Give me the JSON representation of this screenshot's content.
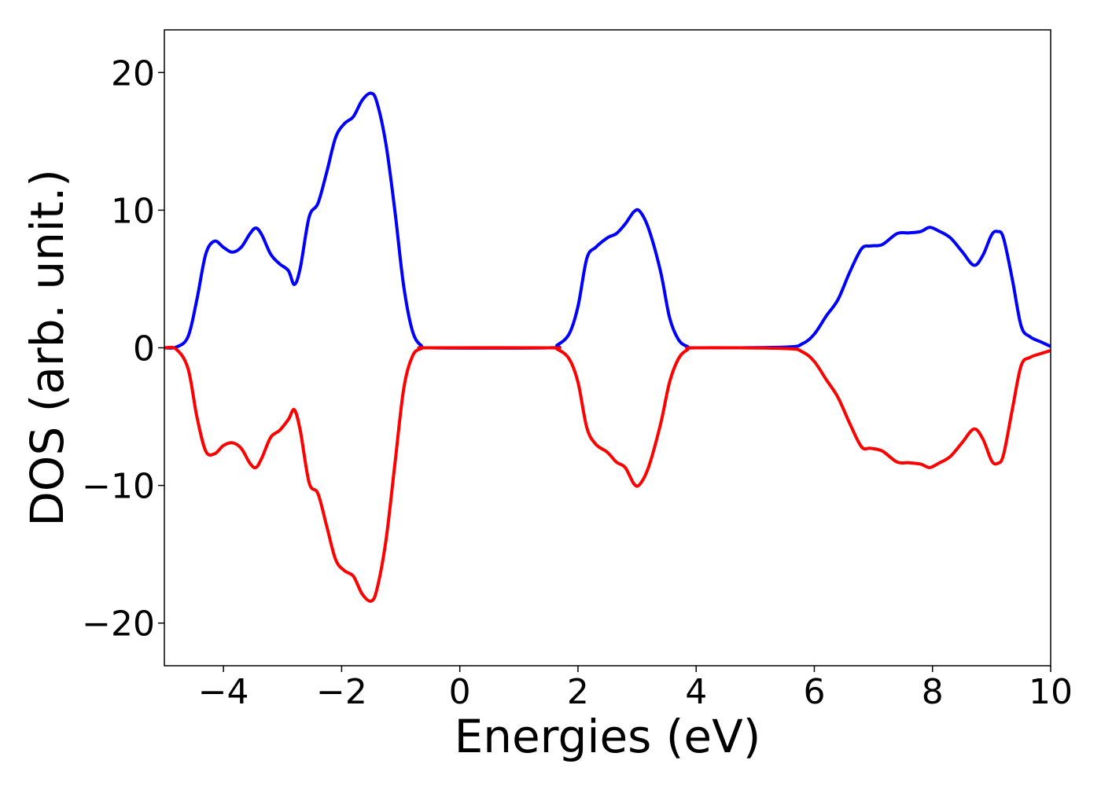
{
  "chart_data": {
    "type": "line",
    "title": "",
    "xlabel": "Energies (eV)",
    "ylabel": "DOS (arb. unit.)",
    "xlim": [
      -5,
      10
    ],
    "ylim": [
      -23.1,
      23.1
    ],
    "xticks": [
      -4,
      -2,
      0,
      2,
      4,
      6,
      8,
      10
    ],
    "xtick_labels": [
      "−4",
      "−2",
      "0",
      "2",
      "4",
      "6",
      "8",
      "10"
    ],
    "yticks": [
      20,
      10,
      0,
      -10,
      -20
    ],
    "ytick_labels": [
      "20",
      "10",
      "0",
      "−10",
      "−20"
    ],
    "grid": false,
    "legend": "none",
    "series": [
      {
        "color": "#0000ff",
        "points": [
          [
            -5.0,
            0.0
          ],
          [
            -4.8,
            0.05
          ],
          [
            -4.6,
            0.8
          ],
          [
            -4.45,
            3.5
          ],
          [
            -4.3,
            6.8
          ],
          [
            -4.15,
            7.75
          ],
          [
            -4.0,
            7.3
          ],
          [
            -3.85,
            6.95
          ],
          [
            -3.7,
            7.3
          ],
          [
            -3.55,
            8.3
          ],
          [
            -3.45,
            8.7
          ],
          [
            -3.35,
            8.2
          ],
          [
            -3.2,
            6.8
          ],
          [
            -3.05,
            6.1
          ],
          [
            -2.9,
            5.6
          ],
          [
            -2.8,
            4.6
          ],
          [
            -2.7,
            5.8
          ],
          [
            -2.55,
            9.5
          ],
          [
            -2.4,
            10.5
          ],
          [
            -2.25,
            12.8
          ],
          [
            -2.1,
            15.3
          ],
          [
            -1.95,
            16.3
          ],
          [
            -1.8,
            16.8
          ],
          [
            -1.65,
            18.0
          ],
          [
            -1.5,
            18.5
          ],
          [
            -1.4,
            17.8
          ],
          [
            -1.25,
            14.8
          ],
          [
            -1.1,
            10.0
          ],
          [
            -0.95,
            4.5
          ],
          [
            -0.8,
            1.2
          ],
          [
            -0.65,
            0.15
          ],
          [
            -0.5,
            0.0
          ],
          [
            1.5,
            0.0
          ],
          [
            1.65,
            0.2
          ],
          [
            1.85,
            1.0
          ],
          [
            2.0,
            3.0
          ],
          [
            2.15,
            6.5
          ],
          [
            2.3,
            7.3
          ],
          [
            2.5,
            8.0
          ],
          [
            2.65,
            8.3
          ],
          [
            2.8,
            9.0
          ],
          [
            2.95,
            9.9
          ],
          [
            3.05,
            9.9
          ],
          [
            3.2,
            8.6
          ],
          [
            3.4,
            5.5
          ],
          [
            3.55,
            2.2
          ],
          [
            3.7,
            0.6
          ],
          [
            3.85,
            0.1
          ],
          [
            4.0,
            0.0
          ],
          [
            5.5,
            0.05
          ],
          [
            5.8,
            0.3
          ],
          [
            6.0,
            1.0
          ],
          [
            6.2,
            2.3
          ],
          [
            6.4,
            3.5
          ],
          [
            6.6,
            5.5
          ],
          [
            6.8,
            7.2
          ],
          [
            6.95,
            7.4
          ],
          [
            7.15,
            7.5
          ],
          [
            7.4,
            8.3
          ],
          [
            7.6,
            8.35
          ],
          [
            7.8,
            8.45
          ],
          [
            7.95,
            8.75
          ],
          [
            8.1,
            8.5
          ],
          [
            8.3,
            8.0
          ],
          [
            8.5,
            7.0
          ],
          [
            8.7,
            6.0
          ],
          [
            8.85,
            6.7
          ],
          [
            9.0,
            8.2
          ],
          [
            9.1,
            8.45
          ],
          [
            9.2,
            8.0
          ],
          [
            9.35,
            5.0
          ],
          [
            9.5,
            1.6
          ],
          [
            9.65,
            0.8
          ],
          [
            9.85,
            0.4
          ],
          [
            10.0,
            0.1
          ]
        ]
      },
      {
        "color": "#ff0000",
        "points": [
          [
            -5.0,
            0.0
          ],
          [
            -4.8,
            -0.1
          ],
          [
            -4.6,
            -1.5
          ],
          [
            -4.45,
            -5.0
          ],
          [
            -4.3,
            -7.5
          ],
          [
            -4.15,
            -7.7
          ],
          [
            -4.0,
            -7.1
          ],
          [
            -3.85,
            -6.9
          ],
          [
            -3.7,
            -7.3
          ],
          [
            -3.55,
            -8.4
          ],
          [
            -3.45,
            -8.7
          ],
          [
            -3.35,
            -8.0
          ],
          [
            -3.2,
            -6.5
          ],
          [
            -3.05,
            -6.0
          ],
          [
            -2.9,
            -5.2
          ],
          [
            -2.8,
            -4.5
          ],
          [
            -2.7,
            -6.0
          ],
          [
            -2.55,
            -9.8
          ],
          [
            -2.4,
            -10.6
          ],
          [
            -2.25,
            -13.0
          ],
          [
            -2.1,
            -15.4
          ],
          [
            -1.95,
            -16.2
          ],
          [
            -1.8,
            -16.6
          ],
          [
            -1.65,
            -17.9
          ],
          [
            -1.5,
            -18.4
          ],
          [
            -1.4,
            -17.5
          ],
          [
            -1.25,
            -14.0
          ],
          [
            -1.1,
            -8.5
          ],
          [
            -0.95,
            -3.0
          ],
          [
            -0.8,
            -0.6
          ],
          [
            -0.65,
            -0.05
          ],
          [
            -0.5,
            0.0
          ],
          [
            1.5,
            0.0
          ],
          [
            1.65,
            -0.1
          ],
          [
            1.85,
            -0.8
          ],
          [
            2.0,
            -2.5
          ],
          [
            2.15,
            -5.8
          ],
          [
            2.3,
            -7.0
          ],
          [
            2.5,
            -7.6
          ],
          [
            2.65,
            -8.3
          ],
          [
            2.8,
            -8.7
          ],
          [
            2.95,
            -9.9
          ],
          [
            3.05,
            -9.9
          ],
          [
            3.2,
            -8.6
          ],
          [
            3.4,
            -5.5
          ],
          [
            3.55,
            -2.5
          ],
          [
            3.7,
            -0.8
          ],
          [
            3.85,
            -0.15
          ],
          [
            4.0,
            0.0
          ],
          [
            5.5,
            -0.05
          ],
          [
            5.8,
            -0.3
          ],
          [
            6.0,
            -1.0
          ],
          [
            6.2,
            -2.3
          ],
          [
            6.4,
            -3.6
          ],
          [
            6.6,
            -5.5
          ],
          [
            6.8,
            -7.2
          ],
          [
            6.95,
            -7.3
          ],
          [
            7.15,
            -7.5
          ],
          [
            7.4,
            -8.3
          ],
          [
            7.6,
            -8.35
          ],
          [
            7.8,
            -8.45
          ],
          [
            7.95,
            -8.7
          ],
          [
            8.1,
            -8.4
          ],
          [
            8.3,
            -7.9
          ],
          [
            8.5,
            -6.9
          ],
          [
            8.7,
            -5.9
          ],
          [
            8.85,
            -6.6
          ],
          [
            9.0,
            -8.2
          ],
          [
            9.1,
            -8.4
          ],
          [
            9.2,
            -7.8
          ],
          [
            9.35,
            -4.5
          ],
          [
            9.5,
            -1.3
          ],
          [
            9.65,
            -0.7
          ],
          [
            9.85,
            -0.4
          ],
          [
            10.0,
            -0.2
          ]
        ]
      }
    ]
  }
}
